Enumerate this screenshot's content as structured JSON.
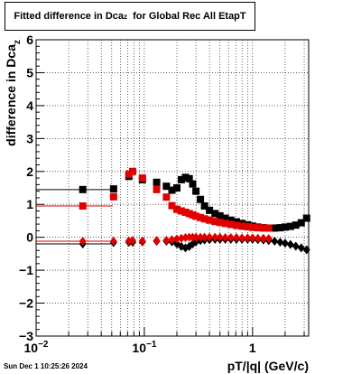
{
  "title": {
    "prefix": "Fitted difference in Dca",
    "sub": "z",
    "suffix": "for Global Rec All EtapT"
  },
  "timestamp": "Sun Dec  1 10:25:26 2024",
  "chart_data": {
    "type": "scatter",
    "xscale": "log",
    "xlim": [
      0.01,
      3.3
    ],
    "ylim": [
      -3,
      6
    ],
    "xlabel": "pT/|q| (GeV/c)",
    "ylabel_main": "difference in Dca",
    "ylabel_sub": "z",
    "grid": true,
    "x_major_ticks": [
      {
        "value": 0.01,
        "label": "10",
        "sup": "−2"
      },
      {
        "value": 0.1,
        "label": "10",
        "sup": "−1"
      },
      {
        "value": 1,
        "label": "1",
        "sup": ""
      }
    ],
    "y_ticks": [
      {
        "value": -3,
        "label": "−3"
      },
      {
        "value": -2,
        "label": "−2"
      },
      {
        "value": -1,
        "label": "−1"
      },
      {
        "value": 0,
        "label": "0"
      },
      {
        "value": 1,
        "label": "1"
      },
      {
        "value": 2,
        "label": "2"
      },
      {
        "value": 3,
        "label": "3"
      },
      {
        "value": 4,
        "label": "4"
      },
      {
        "value": 5,
        "label": "5"
      },
      {
        "value": 6,
        "label": "6"
      }
    ],
    "series": [
      {
        "color": "#000000",
        "marker": "square",
        "points": [
          [
            0.027,
            1.45
          ],
          [
            0.052,
            1.47
          ],
          [
            0.072,
            1.85
          ],
          [
            0.096,
            1.75
          ],
          [
            0.13,
            1.67
          ],
          [
            0.16,
            1.55
          ],
          [
            0.18,
            1.43
          ],
          [
            0.2,
            1.5
          ],
          [
            0.22,
            1.75
          ],
          [
            0.24,
            1.82
          ],
          [
            0.26,
            1.78
          ],
          [
            0.28,
            1.62
          ],
          [
            0.3,
            1.4
          ],
          [
            0.33,
            1.15
          ],
          [
            0.36,
            0.95
          ],
          [
            0.4,
            0.82
          ],
          [
            0.45,
            0.72
          ],
          [
            0.5,
            0.65
          ],
          [
            0.56,
            0.58
          ],
          [
            0.63,
            0.52
          ],
          [
            0.71,
            0.47
          ],
          [
            0.8,
            0.42
          ],
          [
            0.9,
            0.38
          ],
          [
            1.0,
            0.34
          ],
          [
            1.12,
            0.31
          ],
          [
            1.26,
            0.29
          ],
          [
            1.41,
            0.28
          ],
          [
            1.6,
            0.28
          ],
          [
            1.8,
            0.29
          ],
          [
            2.0,
            0.31
          ],
          [
            2.24,
            0.33
          ],
          [
            2.51,
            0.37
          ],
          [
            2.82,
            0.44
          ],
          [
            3.16,
            0.58
          ]
        ],
        "xerr": [
          [
            0.027,
            0.0,
            0.051
          ]
        ]
      },
      {
        "color": "#e00000",
        "marker": "square",
        "points": [
          [
            0.027,
            0.95
          ],
          [
            0.052,
            1.23
          ],
          [
            0.072,
            1.92
          ],
          [
            0.078,
            2.0
          ],
          [
            0.096,
            1.8
          ],
          [
            0.13,
            1.45
          ],
          [
            0.16,
            1.22
          ],
          [
            0.18,
            0.96
          ],
          [
            0.2,
            0.85
          ],
          [
            0.22,
            0.8
          ],
          [
            0.24,
            0.76
          ],
          [
            0.26,
            0.72
          ],
          [
            0.28,
            0.68
          ],
          [
            0.3,
            0.64
          ],
          [
            0.33,
            0.6
          ],
          [
            0.36,
            0.56
          ],
          [
            0.4,
            0.52
          ],
          [
            0.45,
            0.48
          ],
          [
            0.5,
            0.45
          ],
          [
            0.56,
            0.42
          ],
          [
            0.63,
            0.39
          ],
          [
            0.71,
            0.36
          ],
          [
            0.8,
            0.34
          ],
          [
            0.9,
            0.32
          ],
          [
            1.0,
            0.3
          ],
          [
            1.12,
            0.29
          ],
          [
            1.26,
            0.28
          ],
          [
            1.41,
            0.28
          ]
        ],
        "xerr": [
          [
            0.027,
            0.0,
            0.051
          ]
        ]
      },
      {
        "color": "#000000",
        "marker": "diamond",
        "points": [
          [
            0.027,
            -0.2
          ],
          [
            0.052,
            -0.16
          ],
          [
            0.072,
            -0.15
          ],
          [
            0.078,
            -0.15
          ],
          [
            0.096,
            -0.14
          ],
          [
            0.13,
            -0.12
          ],
          [
            0.16,
            -0.12
          ],
          [
            0.18,
            -0.14
          ],
          [
            0.2,
            -0.2
          ],
          [
            0.22,
            -0.28
          ],
          [
            0.24,
            -0.32
          ],
          [
            0.26,
            -0.28
          ],
          [
            0.28,
            -0.2
          ],
          [
            0.3,
            -0.14
          ],
          [
            0.33,
            -0.1
          ],
          [
            0.36,
            -0.08
          ],
          [
            0.4,
            -0.07
          ],
          [
            0.45,
            -0.06
          ],
          [
            0.5,
            -0.06
          ],
          [
            0.56,
            -0.06
          ],
          [
            0.63,
            -0.06
          ],
          [
            0.71,
            -0.06
          ],
          [
            0.8,
            -0.06
          ],
          [
            0.9,
            -0.06
          ],
          [
            1.0,
            -0.06
          ],
          [
            1.12,
            -0.07
          ],
          [
            1.26,
            -0.08
          ],
          [
            1.41,
            -0.1
          ],
          [
            1.6,
            -0.12
          ],
          [
            1.8,
            -0.15
          ],
          [
            2.0,
            -0.18
          ],
          [
            2.24,
            -0.22
          ],
          [
            2.51,
            -0.27
          ],
          [
            2.82,
            -0.32
          ],
          [
            3.16,
            -0.38
          ]
        ],
        "xerr": [
          [
            0.027,
            0.0,
            0.051
          ]
        ]
      },
      {
        "color": "#e00000",
        "marker": "diamond",
        "points": [
          [
            0.027,
            -0.12
          ],
          [
            0.052,
            -0.12
          ],
          [
            0.072,
            -0.11
          ],
          [
            0.078,
            -0.1
          ],
          [
            0.096,
            -0.11
          ],
          [
            0.13,
            -0.1
          ],
          [
            0.16,
            -0.09
          ],
          [
            0.18,
            -0.07
          ],
          [
            0.2,
            -0.05
          ],
          [
            0.22,
            -0.03
          ],
          [
            0.24,
            -0.01
          ],
          [
            0.26,
            0.0
          ],
          [
            0.28,
            0.0
          ],
          [
            0.3,
            0.0
          ],
          [
            0.33,
            0.0
          ],
          [
            0.36,
            0.0
          ],
          [
            0.4,
            0.0
          ],
          [
            0.45,
            0.0
          ],
          [
            0.5,
            0.0
          ],
          [
            0.56,
            -0.01
          ],
          [
            0.63,
            -0.01
          ],
          [
            0.71,
            -0.01
          ],
          [
            0.8,
            -0.02
          ],
          [
            0.9,
            -0.02
          ],
          [
            1.0,
            -0.02
          ],
          [
            1.12,
            -0.03
          ],
          [
            1.26,
            -0.03
          ],
          [
            1.41,
            -0.04
          ]
        ],
        "xerr": [
          [
            0.027,
            0.0,
            0.051
          ]
        ]
      }
    ]
  }
}
